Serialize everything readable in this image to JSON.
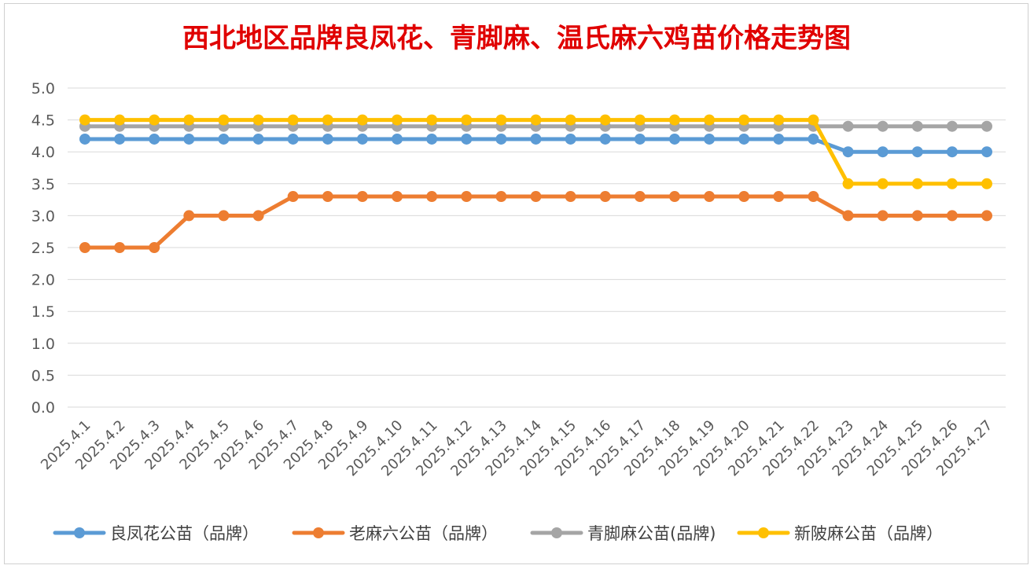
{
  "chart_data": {
    "type": "line",
    "title": "西北地区品牌良凤花、青脚麻、温氏麻六鸡苗价格走势图",
    "xlabel": "",
    "ylabel": "",
    "ylim": [
      0,
      5
    ],
    "yticks": [
      "0.0",
      "0.5",
      "1.0",
      "1.5",
      "2.0",
      "2.5",
      "3.0",
      "3.5",
      "4.0",
      "4.5",
      "5.0"
    ],
    "grid": true,
    "legend_position": "bottom",
    "x": [
      "2025.4.1",
      "2025.4.2",
      "2025.4.3",
      "2025.4.4",
      "2025.4.5",
      "2025.4.6",
      "2025.4.7",
      "2025.4.8",
      "2025.4.9",
      "2025.4.10",
      "2025.4.11",
      "2025.4.12",
      "2025.4.13",
      "2025.4.14",
      "2025.4.15",
      "2025.4.16",
      "2025.4.17",
      "2025.4.18",
      "2025.4.19",
      "2025.4.20",
      "2025.4.21",
      "2025.4.22",
      "2025.4.23",
      "2025.4.24",
      "2025.4.25",
      "2025.4.26",
      "2025.4.27"
    ],
    "series": [
      {
        "name": "良凤花公苗（品牌）",
        "color": "#5b9bd5",
        "values": [
          4.2,
          4.2,
          4.2,
          4.2,
          4.2,
          4.2,
          4.2,
          4.2,
          4.2,
          4.2,
          4.2,
          4.2,
          4.2,
          4.2,
          4.2,
          4.2,
          4.2,
          4.2,
          4.2,
          4.2,
          4.2,
          4.2,
          4.0,
          4.0,
          4.0,
          4.0,
          4.0
        ]
      },
      {
        "name": "老麻六公苗（品牌）",
        "color": "#ed7d31",
        "values": [
          2.5,
          2.5,
          2.5,
          3.0,
          3.0,
          3.0,
          3.3,
          3.3,
          3.3,
          3.3,
          3.3,
          3.3,
          3.3,
          3.3,
          3.3,
          3.3,
          3.3,
          3.3,
          3.3,
          3.3,
          3.3,
          3.3,
          3.0,
          3.0,
          3.0,
          3.0,
          3.0
        ]
      },
      {
        "name": "青脚麻公苗(品牌)",
        "color": "#a5a5a5",
        "values": [
          4.4,
          4.4,
          4.4,
          4.4,
          4.4,
          4.4,
          4.4,
          4.4,
          4.4,
          4.4,
          4.4,
          4.4,
          4.4,
          4.4,
          4.4,
          4.4,
          4.4,
          4.4,
          4.4,
          4.4,
          4.4,
          4.4,
          4.4,
          4.4,
          4.4,
          4.4,
          4.4
        ]
      },
      {
        "name": "新陂麻公苗（品牌）",
        "color": "#ffc000",
        "values": [
          4.5,
          4.5,
          4.5,
          4.5,
          4.5,
          4.5,
          4.5,
          4.5,
          4.5,
          4.5,
          4.5,
          4.5,
          4.5,
          4.5,
          4.5,
          4.5,
          4.5,
          4.5,
          4.5,
          4.5,
          4.5,
          4.5,
          3.5,
          3.5,
          3.5,
          3.5,
          3.5
        ]
      }
    ]
  }
}
